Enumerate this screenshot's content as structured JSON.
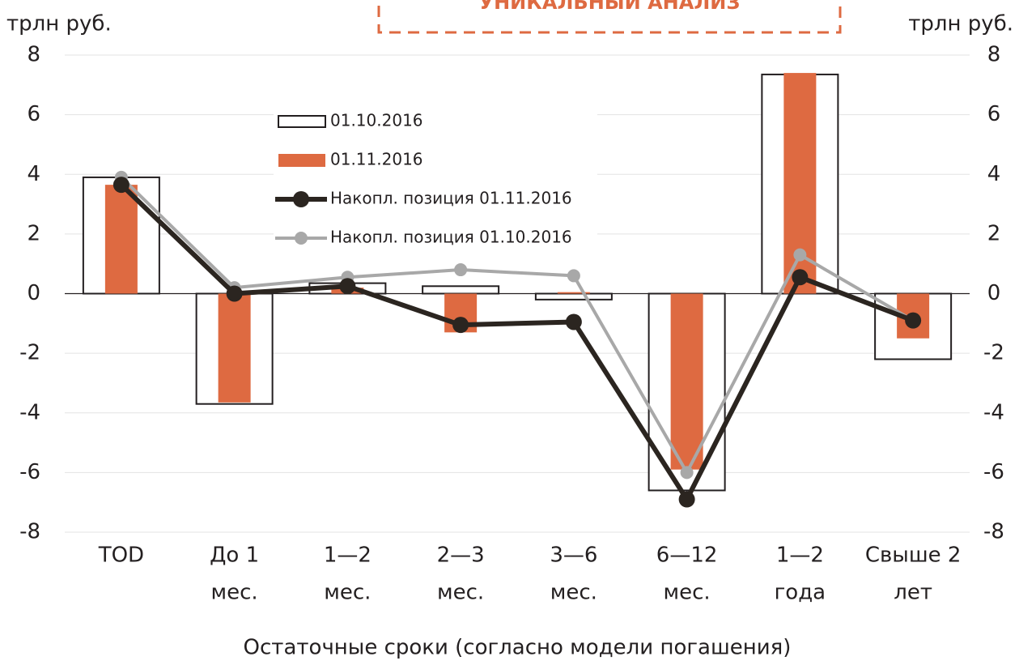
{
  "chart_data": {
    "type": "bar_line",
    "badge": "УНИКАЛЬНЫЙ АНАЛИЗ",
    "ylabel": "трлн руб.",
    "y2label": "трлн руб.",
    "xlabel": "Остаточные сроки (согласно модели погашения)",
    "categories": [
      [
        "TOD"
      ],
      [
        "До 1",
        "мес."
      ],
      [
        "1—2",
        "мес."
      ],
      [
        "2—3",
        "мес."
      ],
      [
        "3—6",
        "мес."
      ],
      [
        "6—12",
        "мес."
      ],
      [
        "1—2",
        "года"
      ],
      [
        "Свыше 2",
        "лет"
      ]
    ],
    "ylim": [
      -8,
      8
    ],
    "yticks": [
      8,
      6,
      4,
      2,
      0,
      -2,
      -4,
      -6,
      -8
    ],
    "y2lim": [
      -8,
      8
    ],
    "y2ticks": [
      8,
      6,
      4,
      2,
      0,
      -2,
      -4,
      -6,
      -8
    ],
    "grid": true,
    "series": [
      {
        "name": "01.10.2016",
        "kind": "bar-outline",
        "color": "#231f20",
        "values": [
          3.9,
          -3.7,
          0.35,
          0.25,
          -0.2,
          -6.6,
          7.35,
          -2.2
        ]
      },
      {
        "name": "01.11.2016",
        "kind": "bar",
        "color": "#de6a41",
        "values": [
          3.65,
          -3.65,
          0.2,
          -1.3,
          0.05,
          -5.9,
          7.4,
          -1.5
        ]
      },
      {
        "name": "Накопл. позиция 01.11.2016",
        "kind": "line",
        "color": "#2b2520",
        "values": [
          3.65,
          0.0,
          0.25,
          -1.05,
          -0.95,
          -6.9,
          0.55,
          -0.9
        ]
      },
      {
        "name": "Накопл. позиция 01.10.2016",
        "kind": "line",
        "color": "#a8a8a8",
        "values": [
          3.9,
          0.2,
          0.55,
          0.8,
          0.6,
          -6.0,
          1.3,
          -0.9
        ]
      }
    ]
  }
}
